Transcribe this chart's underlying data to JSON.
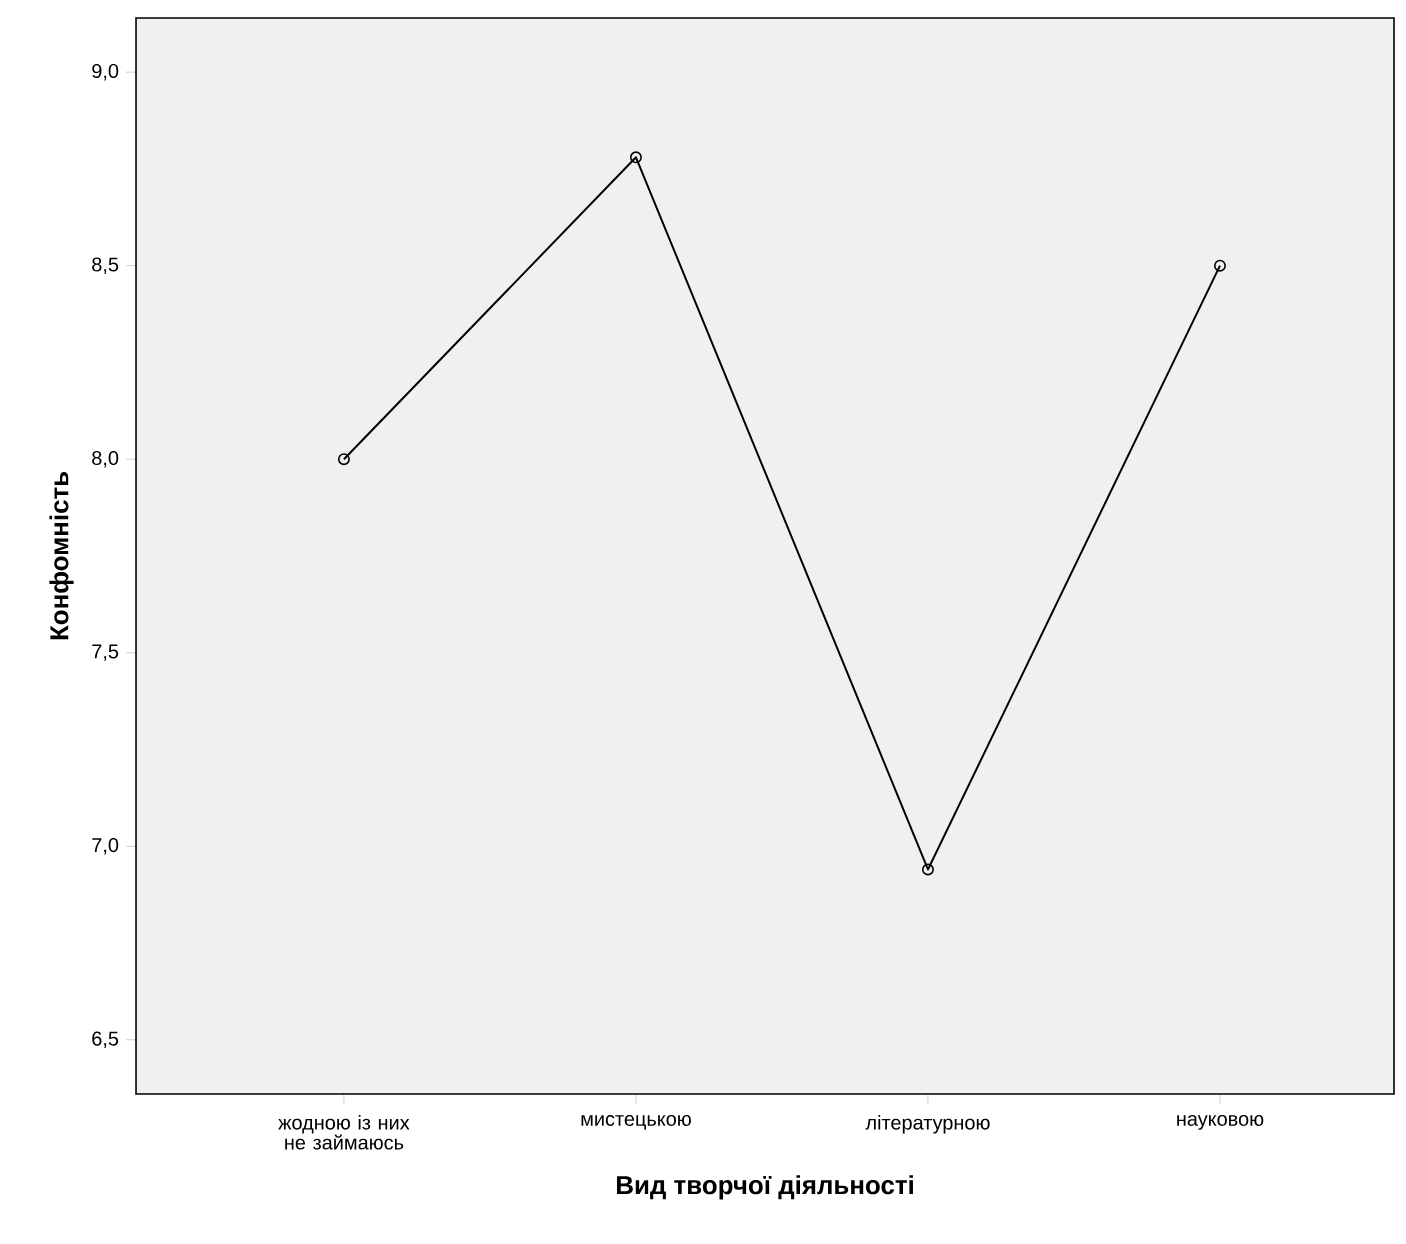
{
  "chart_data": {
    "type": "line",
    "xlabel": "Вид творчої діяльності",
    "ylabel": "Конфомність",
    "categories": [
      "жодною із них не займаюсь",
      "мистецькою",
      "літературною",
      "науковою"
    ],
    "series": [
      {
        "color": "#000000",
        "values": [
          8.0,
          8.78,
          6.94,
          8.5
        ]
      }
    ],
    "ylim": [
      6.36,
      9.14
    ],
    "yticks": [
      {
        "value": 6.5,
        "label": "6,5"
      },
      {
        "value": 7.0,
        "label": "7,0"
      },
      {
        "value": 7.5,
        "label": "7,5"
      },
      {
        "value": 8.0,
        "label": "8,0"
      },
      {
        "value": 8.5,
        "label": "8,5"
      },
      {
        "value": 9.0,
        "label": "9,0"
      }
    ],
    "marker": "circle",
    "line_style": "solid"
  }
}
